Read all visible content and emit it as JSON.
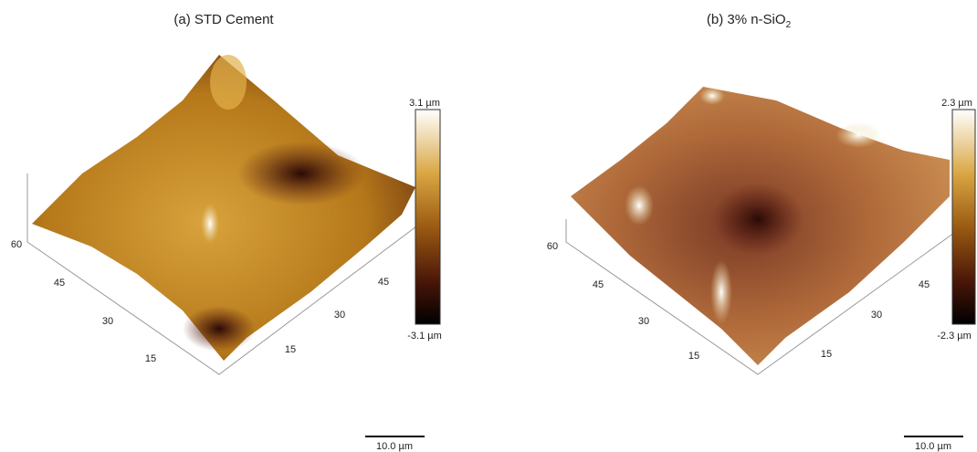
{
  "panels": [
    {
      "title": "(a) STD Cement",
      "left_ticks": [
        60,
        45,
        30,
        15
      ],
      "right_ticks": [
        15,
        30,
        45
      ],
      "colorbar_max": "3.1 µm",
      "colorbar_min": "-3.1 µm",
      "scale_bar": "10.0 µm"
    },
    {
      "title": "(b) 3% n-SiO",
      "title_subscript": "2",
      "left_ticks": [
        60,
        45,
        30,
        15
      ],
      "right_ticks": [
        15,
        30,
        45
      ],
      "colorbar_max": "2.3 µm",
      "colorbar_min": "-2.3 µm",
      "scale_bar": "10.0 µm"
    }
  ]
}
